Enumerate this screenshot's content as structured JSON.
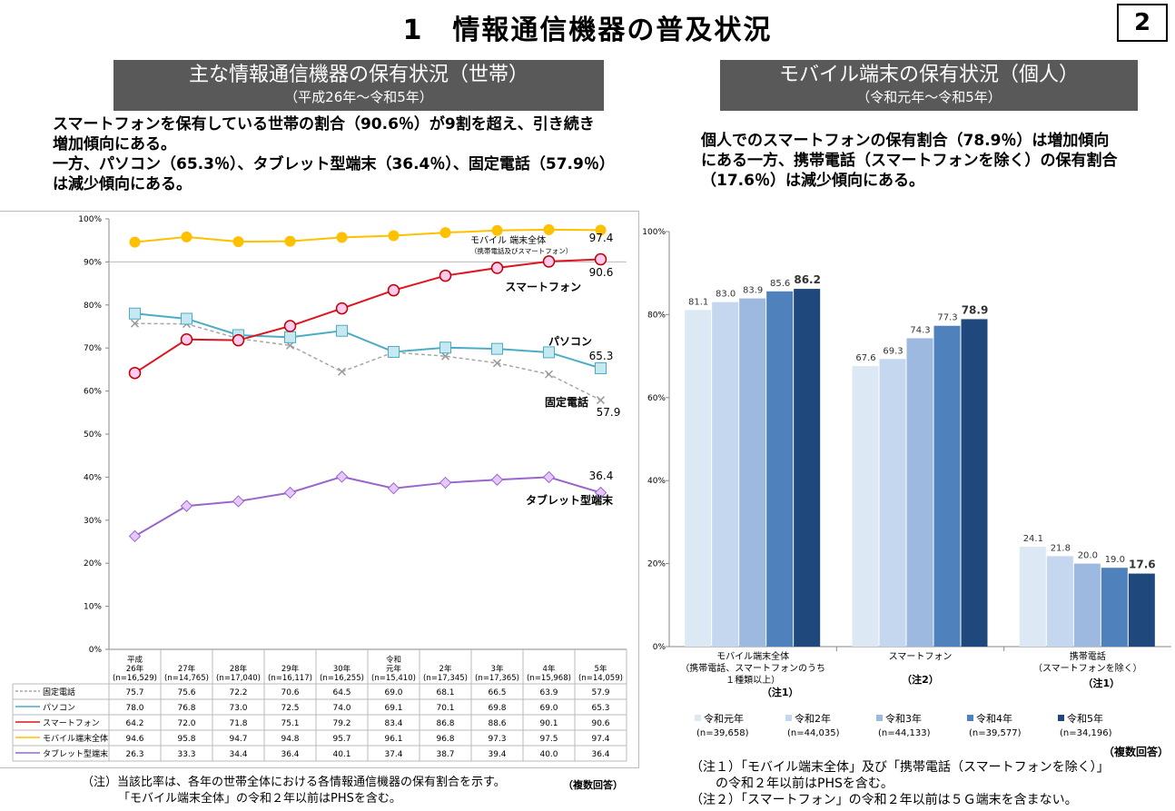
{
  "header": {
    "title": "1　情報通信機器の普及状況",
    "page_number": "2"
  },
  "left": {
    "banner_title": "主な情報通信機器の保有状況（世帯）",
    "banner_sub": "（平成26年～令和5年）",
    "lead": [
      "スマートフォンを保有している世帯の割合（90.6％）が9割を超え、引き続き",
      "増加傾向にある。",
      "一方、パソコン（65.3％）、タブレット型端末（36.4％）、固定電話（57.9％）",
      "は減少傾向にある。"
    ],
    "note1": "（注）当該比率は、各年の世帯全体における各情報通信機器の保有割合を示す。",
    "note2": "「モバイル端末全体」の令和２年以前はPHSを含む。",
    "multi": "（複数回答）"
  },
  "right": {
    "banner_title": "モバイル端末の保有状況（個人）",
    "banner_sub": "（令和元年～令和5年）",
    "lead": [
      "個人でのスマートフォンの保有割合（78.9％）は増加傾向",
      "にある一方、携帯電話（スマートフォンを除く）の保有割合",
      "（17.6％）は減少傾向にある。"
    ],
    "multi": "（複数回答）",
    "notes": [
      "（注１）「モバイル端末全体」及び「携帯電話（スマートフォンを除く）」",
      "　　の令和２年以前はPHSを含む。",
      "（注２）「スマートフォン」の令和２年以前は５Ｇ端末を含まない。"
    ]
  },
  "chart_data": [
    {
      "type": "line",
      "ylim": [
        0,
        100
      ],
      "yticks": [
        "0%",
        "10%",
        "20%",
        "30%",
        "40%",
        "50%",
        "60%",
        "70%",
        "80%",
        "90%",
        "100%"
      ],
      "grid": false,
      "categories": [
        [
          "平成",
          "26年",
          "(n=16,529)"
        ],
        [
          "27年",
          "(n=14,765)"
        ],
        [
          "28年",
          "(n=17,040)"
        ],
        [
          "29年",
          "(n=16,117)"
        ],
        [
          "30年",
          "(n=16,255)"
        ],
        [
          "令和",
          "元年",
          "(n=15,410)"
        ],
        [
          "2年",
          "(n=17,345)"
        ],
        [
          "3年",
          "(n=17,365)"
        ],
        [
          "4年",
          "(n=15,968)"
        ],
        [
          "5年",
          "(n=14,059)"
        ]
      ],
      "series": [
        {
          "name": "固定電話",
          "color": "#a6a6a6",
          "marker": "x",
          "values": [
            75.7,
            75.6,
            72.2,
            70.6,
            64.5,
            69.0,
            68.1,
            66.5,
            63.9,
            57.9
          ],
          "label": "固定電話",
          "end_label": "57.9"
        },
        {
          "name": "パソコン",
          "color": "#4bacc6",
          "marker": "square",
          "values": [
            78.0,
            76.8,
            73.0,
            72.5,
            74.0,
            69.1,
            70.1,
            69.8,
            69.0,
            65.3
          ],
          "label": "パソコン",
          "end_label": "65.3"
        },
        {
          "name": "スマートフォン",
          "color": "#e0141e",
          "marker": "circle",
          "values": [
            64.2,
            72.0,
            71.8,
            75.1,
            79.2,
            83.4,
            86.8,
            88.6,
            90.1,
            90.6
          ],
          "label": "スマートフォン",
          "end_label": "90.6"
        },
        {
          "name": "モバイル端末全体",
          "color": "#ffc000",
          "marker": "dot",
          "values": [
            94.6,
            95.8,
            94.7,
            94.8,
            95.7,
            96.1,
            96.8,
            97.3,
            97.5,
            97.4
          ],
          "label": "モバイル 端末全体",
          "sublabel": "（携帯電話及びスマートフォン）",
          "end_label": "97.4"
        },
        {
          "name": "タブレット型端末",
          "color": "#9966cc",
          "marker": "diamond",
          "values": [
            26.3,
            33.3,
            34.4,
            36.4,
            40.1,
            37.4,
            38.7,
            39.4,
            40.0,
            36.4
          ],
          "label": "タブレット型端末",
          "end_label": "36.4"
        }
      ]
    },
    {
      "type": "bar",
      "ylim": [
        0,
        100
      ],
      "yticks": [
        "0%",
        "20%",
        "40%",
        "60%",
        "80%",
        "100%"
      ],
      "categories": [
        [
          "モバイル端末全体",
          "（携帯電話、スマートフォンのうち",
          "１種類以上）",
          "（注1）"
        ],
        [
          "スマートフォン",
          "",
          "",
          "（注2）"
        ],
        [
          "携帯電話",
          "（スマートフォンを除く）",
          "",
          "（注1）"
        ]
      ],
      "series": [
        {
          "name": "令和元年",
          "n": "(n=39,658)",
          "color": "#dde8f5",
          "values": [
            81.1,
            67.6,
            24.1
          ]
        },
        {
          "name": "令和2年",
          "n": "(n=44,035)",
          "color": "#c5d7ef",
          "values": [
            83.0,
            69.3,
            21.8
          ]
        },
        {
          "name": "令和3年",
          "n": "(n=44,133)",
          "color": "#9db9e0",
          "values": [
            83.9,
            74.3,
            20.0
          ]
        },
        {
          "name": "令和4年",
          "n": "(n=39,577)",
          "color": "#4f81bd",
          "values": [
            85.6,
            77.3,
            19.0
          ]
        },
        {
          "name": "令和5年",
          "n": "(n=34,196)",
          "color": "#1f497d",
          "values": [
            86.2,
            78.9,
            17.6
          ]
        }
      ]
    }
  ]
}
